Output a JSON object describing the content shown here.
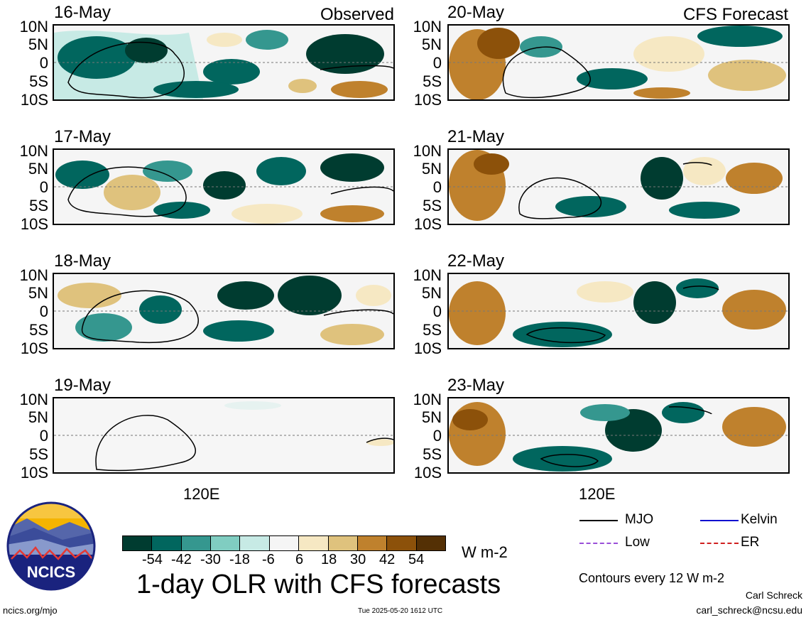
{
  "title": "1-day OLR with CFS forecasts",
  "units": "W m-2",
  "contour_note": "Contours every 12 W m-2",
  "site": "ncics.org/mjo",
  "timestamp": "Tue 2025-05-20 1612 UTC",
  "author": "Carl Schreck",
  "email": "carl_schreck@ncsu.edu",
  "logo_text": "NCICS",
  "panel_tags": {
    "observed": "Observed",
    "forecast": "CFS Forecast"
  },
  "lat_labels": [
    "10N",
    "5N",
    "0",
    "5S",
    "10S"
  ],
  "lon_label": "120E",
  "panels": {
    "left": [
      {
        "date": "16-May"
      },
      {
        "date": "17-May"
      },
      {
        "date": "18-May"
      },
      {
        "date": "19-May"
      }
    ],
    "right": [
      {
        "date": "20-May"
      },
      {
        "date": "21-May"
      },
      {
        "date": "22-May"
      },
      {
        "date": "23-May"
      }
    ]
  },
  "colorbar": {
    "ticks": [
      "-54",
      "-42",
      "-30",
      "-18",
      "-6",
      "6",
      "18",
      "30",
      "42",
      "54"
    ],
    "colors": [
      "#003c30",
      "#01665e",
      "#35978f",
      "#80cdc1",
      "#c7eae5",
      "#f5f5f5",
      "#f6e8c3",
      "#dfc27d",
      "#bf812d",
      "#8c510a",
      "#543005"
    ]
  },
  "legend": [
    {
      "label": "MJO",
      "color": "#000000"
    },
    {
      "label": "Kelvin",
      "color": "#1010d0"
    },
    {
      "label": "Low",
      "color": "#9a4fd8"
    },
    {
      "label": "ER",
      "color": "#d02020"
    }
  ]
}
